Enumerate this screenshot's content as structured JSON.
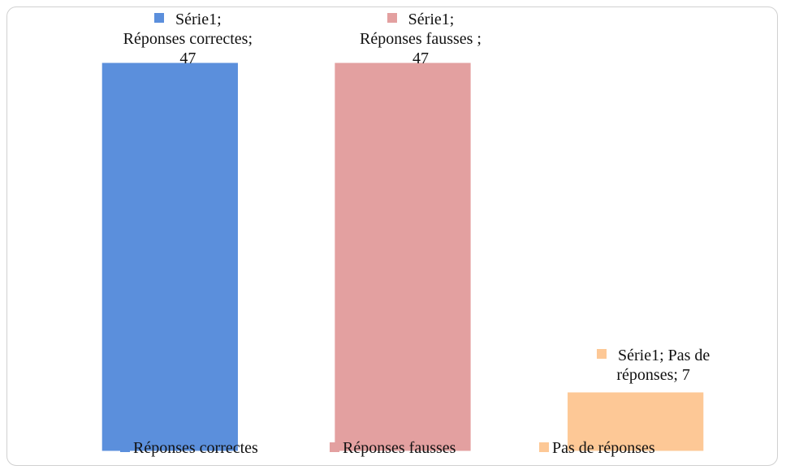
{
  "chart_data": {
    "type": "bar",
    "series_name": "Série1",
    "categories": [
      "Réponses correctes",
      "Réponses fausses",
      "Pas de réponses"
    ],
    "values": [
      47,
      47,
      7
    ],
    "value_labels": [
      "Série1; Réponses correctes; 47",
      "Série1; Réponses fausses ; 47",
      "Série1; Pas de réponses; 7"
    ],
    "colors": [
      "#5b8fdc",
      "#e3a0a0",
      "#fdc896"
    ],
    "legend": "bottom"
  }
}
